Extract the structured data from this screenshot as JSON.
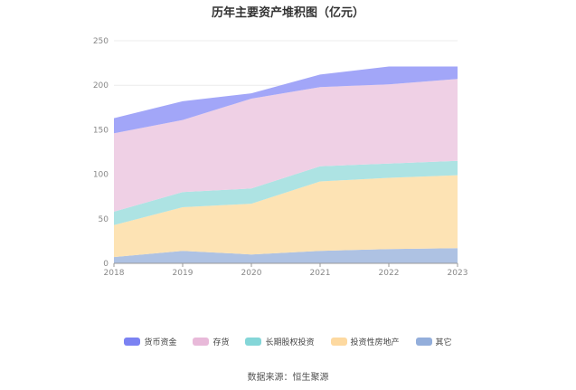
{
  "chart_data": {
    "type": "area",
    "stacked": true,
    "title": "历年主要资产堆积图（亿元）",
    "xlabel": "",
    "ylabel": "",
    "x": [
      "2018",
      "2019",
      "2020",
      "2021",
      "2022",
      "2023"
    ],
    "ylim": [
      0,
      250
    ],
    "yticks": [
      0,
      50,
      100,
      150,
      200,
      250
    ],
    "grid": true,
    "legend_position": "bottom",
    "series": [
      {
        "name": "其它",
        "color": "#aec2e3",
        "values": [
          7,
          14,
          10,
          14,
          16,
          17
        ]
      },
      {
        "name": "投资性房地产",
        "color": "#fde3b4",
        "values": [
          36,
          49,
          57,
          78,
          80,
          82
        ]
      },
      {
        "name": "长期股权投资",
        "color": "#ade3e3",
        "values": [
          15,
          17,
          17,
          17,
          16,
          16
        ]
      },
      {
        "name": "存货",
        "color": "#efd0e5",
        "values": [
          88,
          81,
          101,
          89,
          89,
          92
        ]
      },
      {
        "name": "货币资金",
        "color": "#a2a6f8",
        "values": [
          17,
          21,
          6,
          14,
          20,
          14
        ]
      }
    ],
    "legend_order": [
      {
        "name": "货币资金",
        "color": "#7b82f2"
      },
      {
        "name": "存货",
        "color": "#e8b9d9"
      },
      {
        "name": "长期股权投资",
        "color": "#84d6d8"
      },
      {
        "name": "投资性房地产",
        "color": "#fdd9a0"
      },
      {
        "name": "其它",
        "color": "#93aedb"
      }
    ]
  },
  "source_text": "数据来源：恒生聚源"
}
